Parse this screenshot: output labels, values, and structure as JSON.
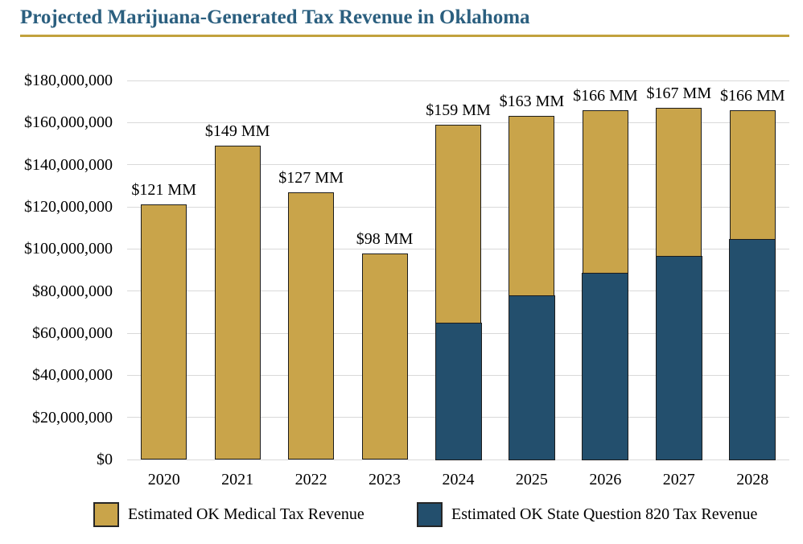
{
  "header": {
    "title": "Projected Marijuana-Generated Tax Revenue in Oklahoma"
  },
  "colors": {
    "title_text": "#2B5F7F",
    "title_rule": "#C2A23D",
    "medical_bar": "#C9A44A",
    "sq820_bar": "#234F6D",
    "bar_border": "#1c1c1c",
    "gridline": "#D9D9D9",
    "text": "#000000"
  },
  "chart_data": {
    "type": "bar",
    "stacked": true,
    "units": "USD millions",
    "title": "Projected Marijuana-Generated Tax Revenue in Oklahoma",
    "categories": [
      "2020",
      "2021",
      "2022",
      "2023",
      "2024",
      "2025",
      "2026",
      "2027",
      "2028"
    ],
    "series": [
      {
        "name": "Estimated OK Medical Tax Revenue",
        "color": "#C9A44A",
        "values_mm": [
          121,
          149,
          127,
          98,
          94,
          85,
          77,
          70,
          61
        ]
      },
      {
        "name": "Estimated OK State Question 820 Tax Revenue",
        "color": "#234F6D",
        "values_mm": [
          0,
          0,
          0,
          0,
          65,
          78,
          89,
          97,
          105
        ]
      }
    ],
    "stack_bottom_to_top_series_indexes": [
      1,
      0
    ],
    "total_labels": [
      "$121 MM",
      "$149 MM",
      "$127 MM",
      "$98 MM",
      "$159 MM",
      "$163 MM",
      "$166 MM",
      "$167 MM",
      "$166 MM"
    ],
    "totals_mm": [
      121,
      149,
      127,
      98,
      159,
      163,
      166,
      167,
      166
    ],
    "ylim_mm": [
      0,
      180
    ],
    "y_tick_step_mm": 20,
    "y_tick_labels": [
      "$0",
      "$20,000,000",
      "$40,000,000",
      "$60,000,000",
      "$80,000,000",
      "$100,000,000",
      "$120,000,000",
      "$140,000,000",
      "$160,000,000",
      "$180,000,000"
    ],
    "grid": true,
    "legend_position": "bottom"
  },
  "legend": {
    "items": [
      {
        "label": "Estimated OK Medical Tax Revenue",
        "color": "#C9A44A"
      },
      {
        "label": "Estimated OK State Question 820 Tax Revenue",
        "color": "#234F6D"
      }
    ]
  }
}
